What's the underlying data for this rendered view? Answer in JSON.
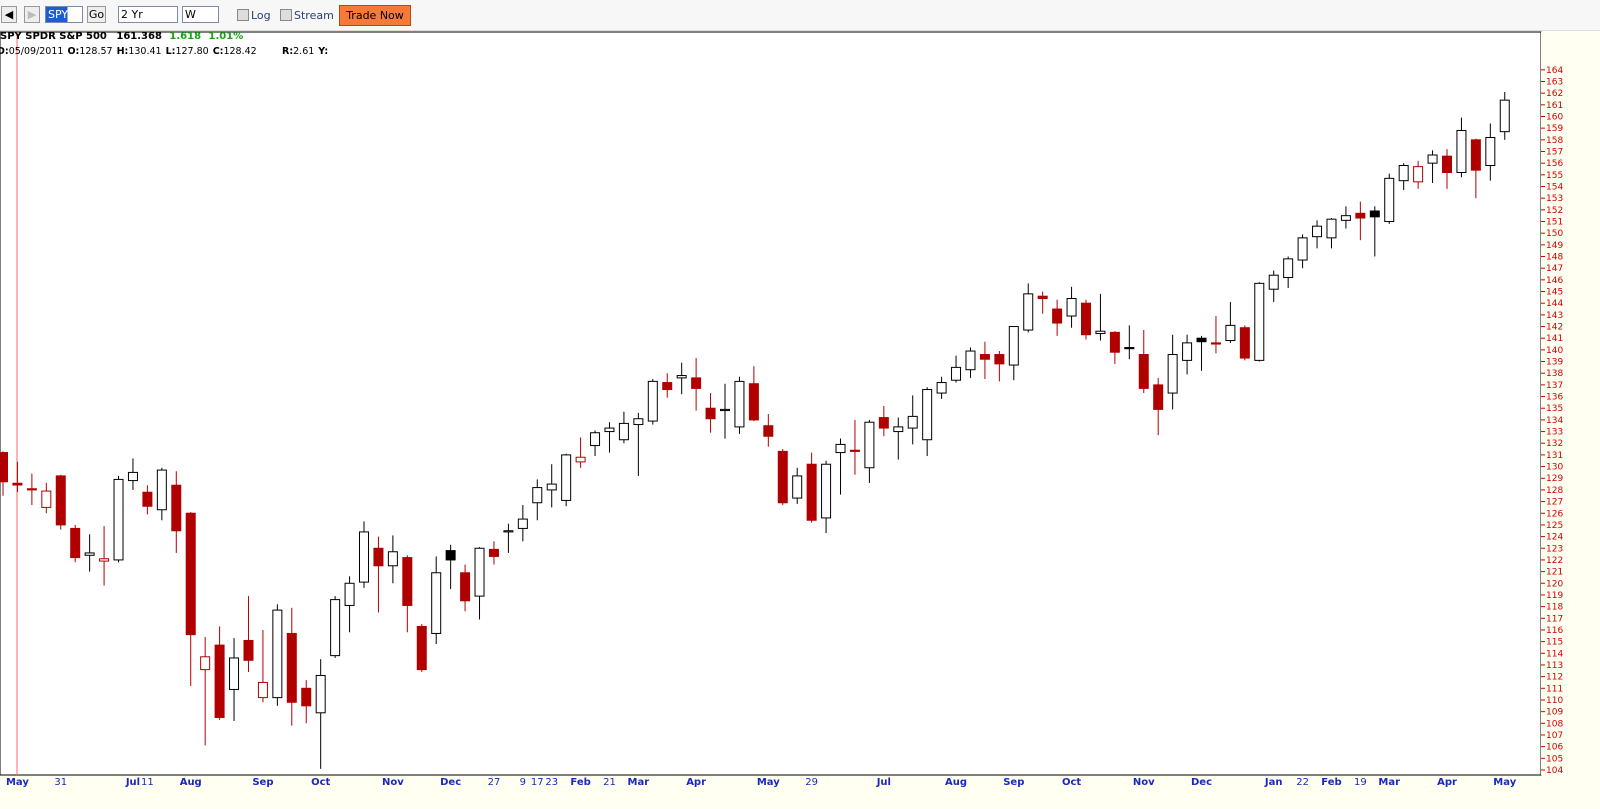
{
  "toolbar": {
    "symbol_input": "SPY",
    "go": "Go",
    "period": "2 Yr",
    "interval": "W",
    "log": "Log",
    "stream": "Stream",
    "trade": "Trade Now"
  },
  "header": {
    "name": "SPY SPDR S&P 500",
    "last": "161.368",
    "change": "1.618",
    "change_pct": "1.01%"
  },
  "info": [
    {
      "label": "D:",
      "value": "05/09/2011"
    },
    {
      "label": "O:",
      "value": "128.57"
    },
    {
      "label": "H:",
      "value": "130.41"
    },
    {
      "label": "L:",
      "value": "127.80"
    },
    {
      "label": "C:",
      "value": "128.42"
    }
  ],
  "info2": [
    {
      "label": "R:",
      "value": "2.61"
    },
    {
      "label": "Y:"
    }
  ],
  "chart_data": {
    "type": "candlestick",
    "colors": {
      "up": "#000000",
      "down": "#b00000"
    },
    "categories": [
      null,
      "May",
      null,
      null,
      "31",
      null,
      null,
      null,
      null,
      "Jul",
      "11",
      null,
      null,
      "Aug",
      null,
      null,
      null,
      null,
      "Sep",
      null,
      null,
      null,
      "Oct",
      null,
      null,
      null,
      null,
      "Nov",
      null,
      null,
      null,
      "Dec",
      null,
      null,
      "27",
      null,
      "9",
      "17",
      "23",
      null,
      "Feb",
      null,
      "21",
      null,
      "Mar",
      null,
      null,
      null,
      "Apr",
      null,
      null,
      null,
      null,
      "May",
      null,
      null,
      "29",
      null,
      null,
      null,
      null,
      "Jul",
      null,
      null,
      null,
      null,
      "Aug",
      null,
      null,
      null,
      "Sep",
      null,
      null,
      null,
      "Oct",
      null,
      null,
      null,
      null,
      "Nov",
      null,
      null,
      null,
      "Dec",
      null,
      null,
      null,
      null,
      "Jan",
      null,
      "22",
      null,
      "Feb",
      null,
      "19",
      null,
      "Mar",
      null,
      null,
      null,
      "Apr",
      null,
      null,
      null,
      "May"
    ],
    "open": [
      131.2,
      128.57,
      128.1,
      126.5,
      129.2,
      124.7,
      122.4,
      121.9,
      122.0,
      128.8,
      127.8,
      126.3,
      128.4,
      126.0,
      112.6,
      114.7,
      110.9,
      115.1,
      110.2,
      110.2,
      115.7,
      111.0,
      108.9,
      113.8,
      118.1,
      120.1,
      123.0,
      121.5,
      122.2,
      116.3,
      115.7,
      122.8,
      120.9,
      118.9,
      122.9,
      124.4,
      124.7,
      126.9,
      128.0,
      127.1,
      130.4,
      131.8,
      133.0,
      132.3,
      133.6,
      133.9,
      137.2,
      137.6,
      137.6,
      135.0,
      134.8,
      133.4,
      137.1,
      133.5,
      131.3,
      127.3,
      130.2,
      125.6,
      131.2,
      131.4,
      129.9,
      134.2,
      133.0,
      133.3,
      132.3,
      136.3,
      137.4,
      138.3,
      139.6,
      139.6,
      138.7,
      141.7,
      144.6,
      143.5,
      142.9,
      144.0,
      141.4,
      141.5,
      140.2,
      139.6,
      137.0,
      136.3,
      139.1,
      141.0,
      140.6,
      140.8,
      141.9,
      139.1,
      145.2,
      146.2,
      147.7,
      149.7,
      149.6,
      151.1,
      151.7,
      151.9,
      151.0,
      154.5,
      154.4,
      156.0,
      156.6,
      155.2,
      158.0,
      155.8,
      158.7
    ],
    "high": [
      131.3,
      130.41,
      129.4,
      128.6,
      129.3,
      125.0,
      124.2,
      124.9,
      129.2,
      130.7,
      128.4,
      129.9,
      129.6,
      126.1,
      115.4,
      116.3,
      115.3,
      118.9,
      116.0,
      118.2,
      117.9,
      111.7,
      113.5,
      118.9,
      120.6,
      125.3,
      124.0,
      124.1,
      122.4,
      116.5,
      122.3,
      123.3,
      121.6,
      123.1,
      123.6,
      125.1,
      126.7,
      128.9,
      130.2,
      131.1,
      132.5,
      133.1,
      133.8,
      134.7,
      134.6,
      137.5,
      138.0,
      138.9,
      139.3,
      136.3,
      137.1,
      137.7,
      138.6,
      134.5,
      131.5,
      129.9,
      131.2,
      130.5,
      132.4,
      134.0,
      134.0,
      135.2,
      134.2,
      136.1,
      136.8,
      137.7,
      139.5,
      140.2,
      140.7,
      139.9,
      142.0,
      145.7,
      145.0,
      144.3,
      145.4,
      144.3,
      144.8,
      141.6,
      142.1,
      141.7,
      137.6,
      141.3,
      141.3,
      141.2,
      142.9,
      144.1,
      142.1,
      145.8,
      146.8,
      148.0,
      149.9,
      151.1,
      151.3,
      152.3,
      152.7,
      152.3,
      155.1,
      156.0,
      156.2,
      157.1,
      157.2,
      159.9,
      158.1,
      159.4,
      162.1
    ],
    "low": [
      127.5,
      127.8,
      126.7,
      126.0,
      124.6,
      121.8,
      121.0,
      119.8,
      121.8,
      128.0,
      125.9,
      125.4,
      122.6,
      111.2,
      106.1,
      108.3,
      108.2,
      112.4,
      109.8,
      109.5,
      107.8,
      108.0,
      104.1,
      113.6,
      115.8,
      119.6,
      117.5,
      120.0,
      115.8,
      112.4,
      114.8,
      119.5,
      117.6,
      116.9,
      121.6,
      122.6,
      123.6,
      125.4,
      126.5,
      126.6,
      129.9,
      130.9,
      131.2,
      132.0,
      129.2,
      133.6,
      135.9,
      136.2,
      134.8,
      132.9,
      132.4,
      132.8,
      133.9,
      131.7,
      126.7,
      126.8,
      125.2,
      124.3,
      127.6,
      129.3,
      128.6,
      132.6,
      130.6,
      131.9,
      130.9,
      135.8,
      137.2,
      137.6,
      137.5,
      137.3,
      137.4,
      141.5,
      143.1,
      141.2,
      141.9,
      140.9,
      140.8,
      138.8,
      139.2,
      136.3,
      132.7,
      134.9,
      137.9,
      138.2,
      139.7,
      140.6,
      139.1,
      139.0,
      144.1,
      145.3,
      147.0,
      148.7,
      148.7,
      150.4,
      149.4,
      148.0,
      150.8,
      153.7,
      153.8,
      154.3,
      153.8,
      154.8,
      153.0,
      154.5,
      158.0
    ],
    "close": [
      128.7,
      128.42,
      128.0,
      127.9,
      125.0,
      122.2,
      122.6,
      122.1,
      128.9,
      129.5,
      126.6,
      129.7,
      124.5,
      115.6,
      113.7,
      108.5,
      113.6,
      113.4,
      111.5,
      117.7,
      109.8,
      109.5,
      112.1,
      118.6,
      120.0,
      124.4,
      121.5,
      122.7,
      118.1,
      112.6,
      120.9,
      122.0,
      118.5,
      123.0,
      122.3,
      124.5,
      125.5,
      128.2,
      128.5,
      131.0,
      130.8,
      132.9,
      133.3,
      133.7,
      134.1,
      137.3,
      136.6,
      137.8,
      136.7,
      134.1,
      134.9,
      137.3,
      134.0,
      132.6,
      126.9,
      129.2,
      125.4,
      130.2,
      131.9,
      131.3,
      133.8,
      133.3,
      133.4,
      134.3,
      136.6,
      137.2,
      138.5,
      139.9,
      139.2,
      138.8,
      142.0,
      144.8,
      144.4,
      142.3,
      144.4,
      141.3,
      141.6,
      139.8,
      140.1,
      136.7,
      134.9,
      139.6,
      140.6,
      140.7,
      140.5,
      142.1,
      139.3,
      145.7,
      146.4,
      147.8,
      149.6,
      150.6,
      151.2,
      151.5,
      151.3,
      151.4,
      154.7,
      155.8,
      155.7,
      156.7,
      155.2,
      158.8,
      155.4,
      158.2,
      161.4
    ],
    "ylim": [
      103.57,
      167.24
    ],
    "yticks": [
      104,
      105,
      106,
      107,
      108,
      109,
      110,
      111,
      112,
      113,
      114,
      115,
      116,
      117,
      118,
      119,
      120,
      121,
      122,
      123,
      124,
      125,
      126,
      127,
      128,
      129,
      130,
      131,
      132,
      133,
      134,
      135,
      136,
      137,
      138,
      139,
      140,
      141,
      142,
      143,
      144,
      145,
      146,
      147,
      148,
      149,
      150,
      151,
      152,
      153,
      154,
      155,
      156,
      157,
      158,
      159,
      160,
      161,
      162,
      163,
      164
    ]
  }
}
